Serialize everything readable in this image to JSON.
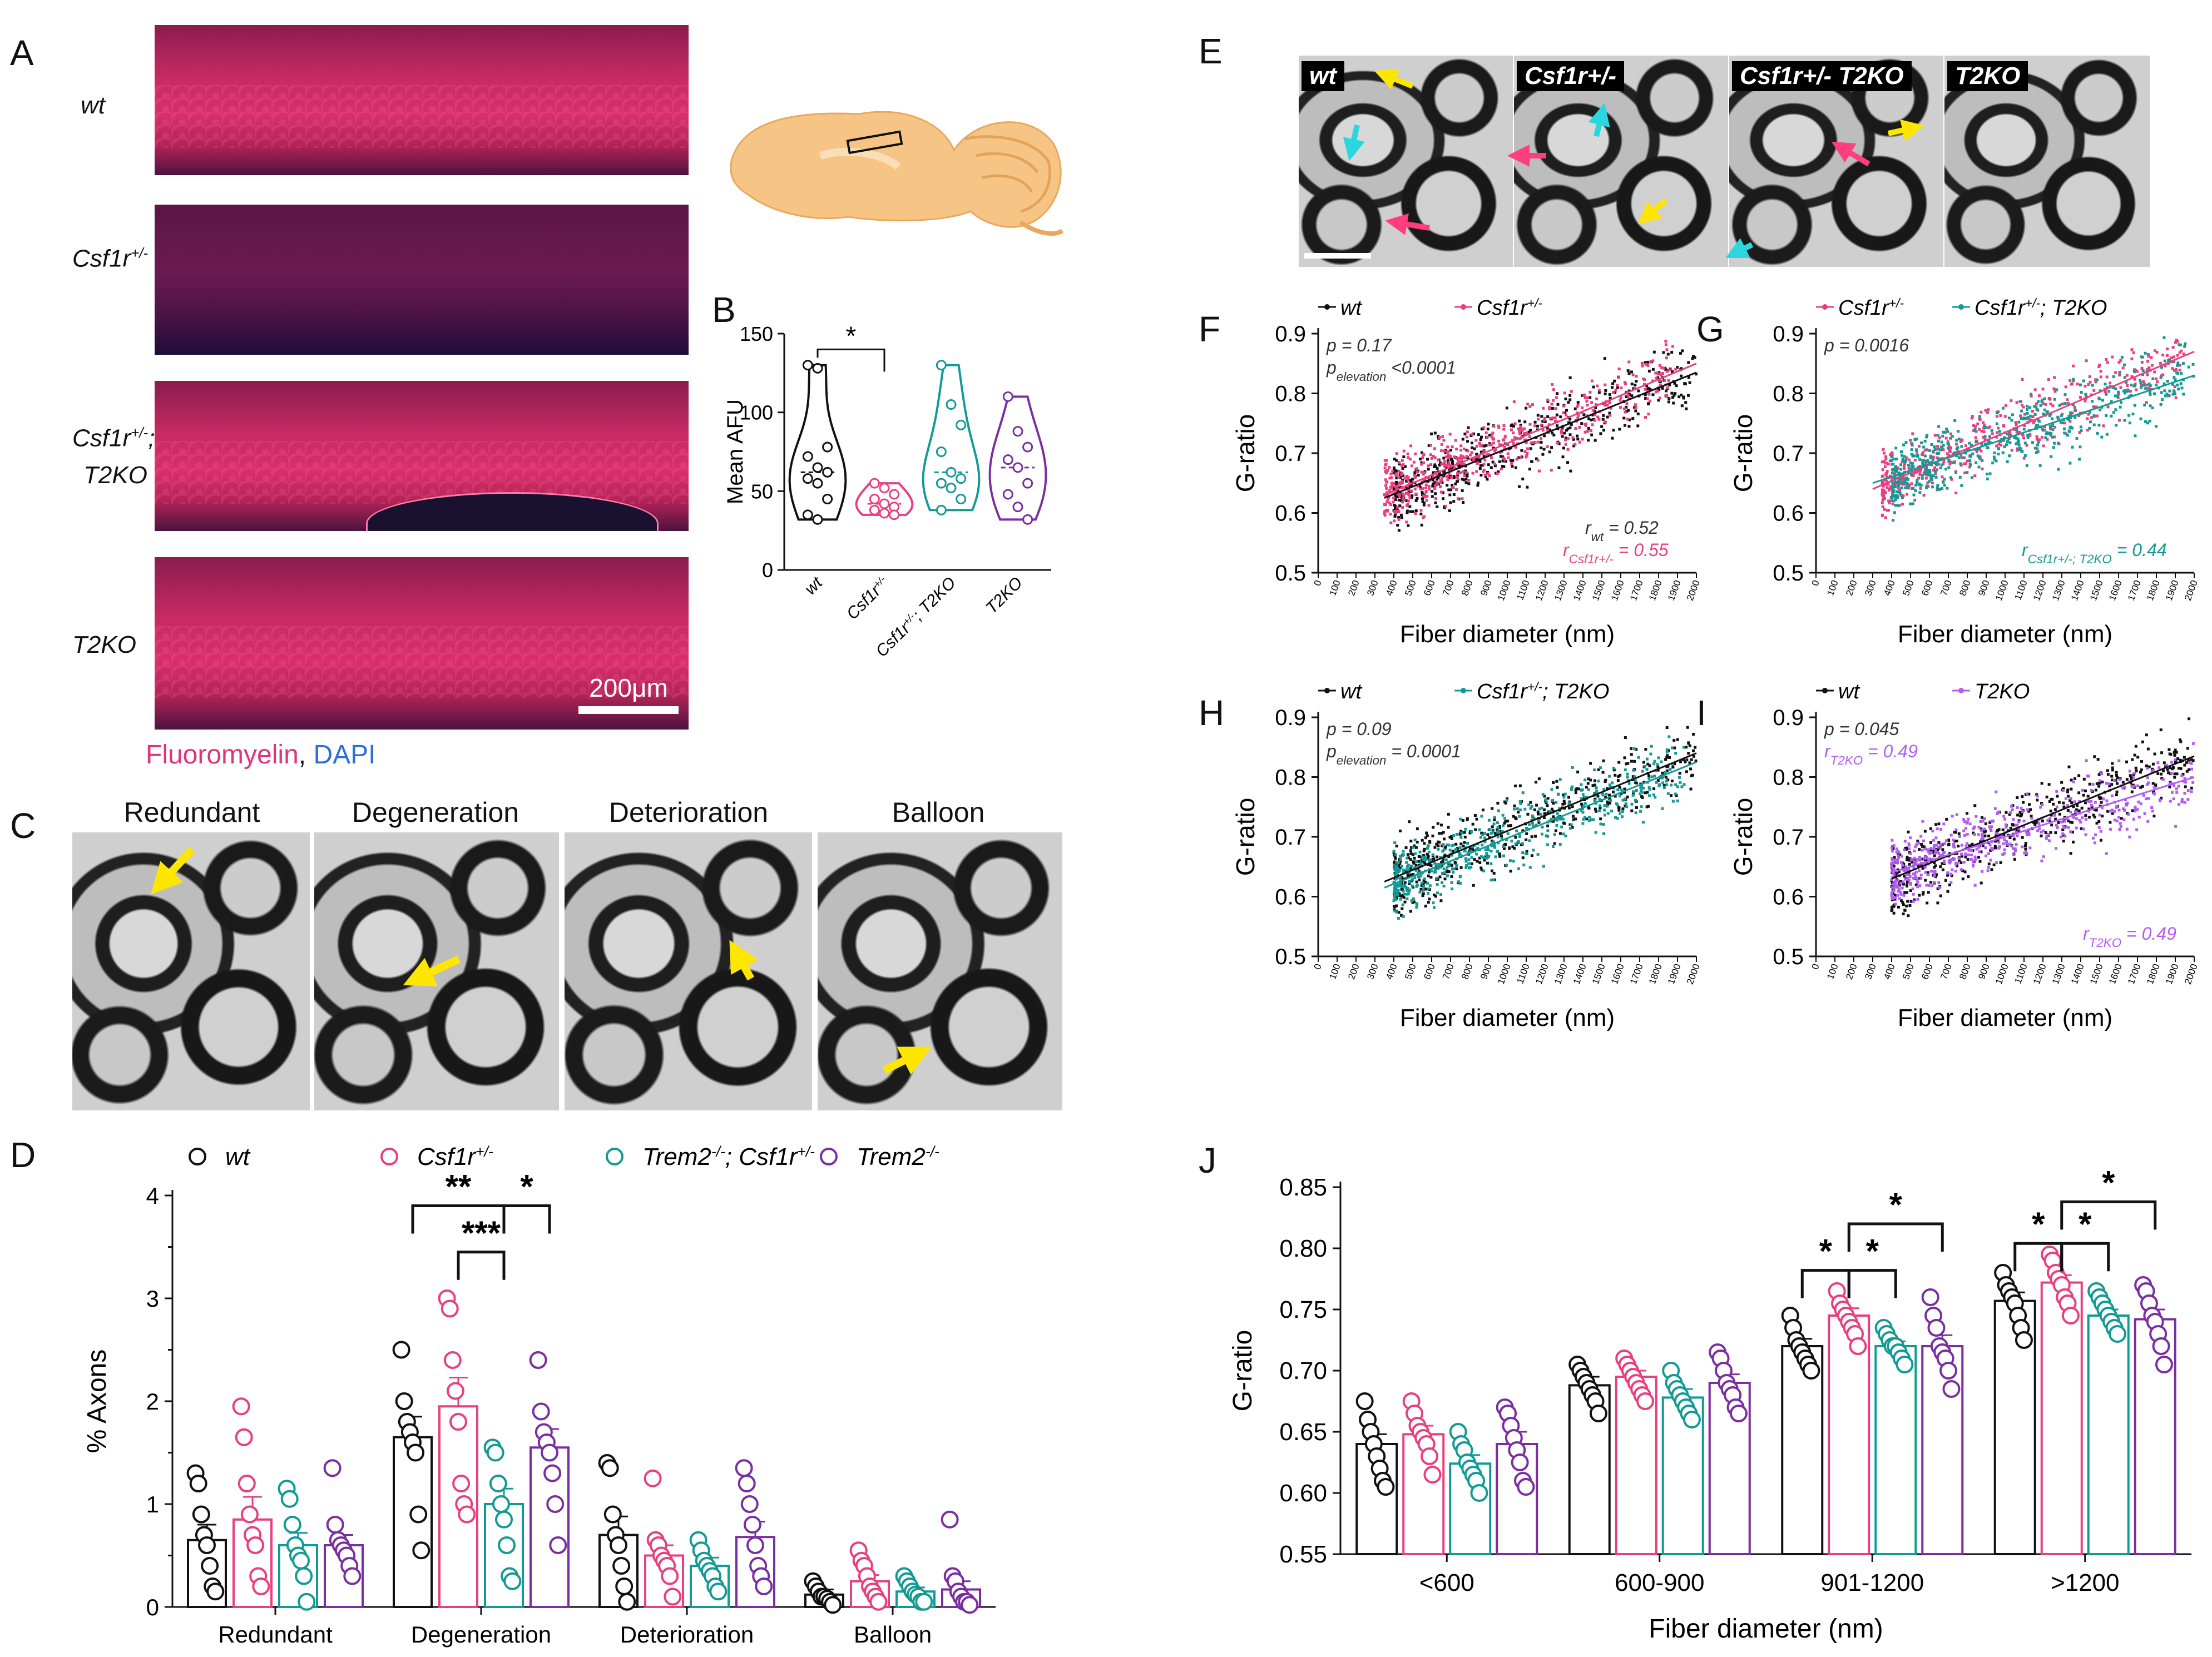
{
  "panel_letters": {
    "a": "A",
    "b": "B",
    "c": "C",
    "d": "D",
    "e": "E",
    "f": "F",
    "g": "G",
    "h": "H",
    "i": "I",
    "j": "J"
  },
  "panel_a": {
    "rows": [
      "wt",
      "Csf1r+/-",
      "Csf1r+/-; T2KO",
      "T2KO"
    ],
    "scale_bar": "200μm",
    "stain_1": "Fluoromyelin",
    "stain_sep": ", ",
    "stain_2": "DAPI",
    "colors": {
      "fluoromyelin": "#e0337a",
      "dapi": "#2f6ed8"
    }
  },
  "panel_c": {
    "titles": [
      "Redundant",
      "Degeneration",
      "Deterioration",
      "Balloon"
    ]
  },
  "panel_e": {
    "labels": [
      "wt",
      "Csf1r+/-",
      "Csf1r+/- T2KO",
      "T2KO"
    ]
  },
  "colors": {
    "wt": "#111111",
    "csf": "#e8407f",
    "trem_csf": "#129a95",
    "trem": "#7a2fa0",
    "scatter_trem": "#b45cf0"
  },
  "chart_data": [
    {
      "id": "B",
      "type": "violin",
      "ylabel": "Mean AFU",
      "ylim": [
        0,
        150
      ],
      "yticks": [
        0,
        50,
        100,
        150
      ],
      "categories": [
        "wt",
        "Csf1r+/-",
        "Csf1r+/-; T2KO",
        "T2KO"
      ],
      "series": [
        {
          "name": "wt",
          "values": [
            130,
            128,
            78,
            72,
            65,
            62,
            58,
            55,
            45,
            35,
            32
          ]
        },
        {
          "name": "Csf1r+/-",
          "values": [
            55,
            52,
            48,
            45,
            42,
            40,
            38,
            36,
            35
          ]
        },
        {
          "name": "Csf1r+/-; T2KO",
          "values": [
            130,
            105,
            92,
            75,
            62,
            58,
            55,
            52,
            45,
            38
          ]
        },
        {
          "name": "T2KO",
          "values": [
            110,
            88,
            78,
            70,
            65,
            55,
            48,
            40,
            32
          ]
        }
      ],
      "significance": [
        {
          "from": 0,
          "to": 1,
          "label": "*"
        }
      ]
    },
    {
      "id": "D",
      "type": "bar",
      "ylabel": "% Axons",
      "ylim": [
        0,
        4
      ],
      "yticks": [
        0,
        1,
        2,
        3,
        4
      ],
      "categories": [
        "Redundant",
        "Degeneration",
        "Deterioration",
        "Balloon"
      ],
      "legend": [
        "wt",
        "Csf1r+/-",
        "Trem2-/-; Csf1r+/-",
        "Trem2-/-"
      ],
      "series": [
        {
          "name": "wt",
          "values": [
            0.65,
            1.65,
            0.7,
            0.12
          ],
          "errors": [
            0.15,
            0.2,
            0.18,
            0.05
          ],
          "points": [
            [
              1.3,
              1.2,
              0.9,
              0.7,
              0.6,
              0.4,
              0.2,
              0.15
            ],
            [
              2.5,
              2.0,
              1.8,
              1.7,
              1.6,
              1.5,
              0.9,
              0.55
            ],
            [
              1.4,
              1.35,
              0.9,
              0.7,
              0.6,
              0.4,
              0.2,
              0.05
            ],
            [
              0.25,
              0.2,
              0.15,
              0.1,
              0.1,
              0.08,
              0.05,
              0.02
            ]
          ]
        },
        {
          "name": "Csf1r+/-",
          "values": [
            0.85,
            1.95,
            0.5,
            0.25
          ],
          "errors": [
            0.22,
            0.28,
            0.1,
            0.06
          ],
          "points": [
            [
              1.95,
              1.65,
              1.2,
              0.9,
              0.7,
              0.6,
              0.3,
              0.2
            ],
            [
              3.0,
              2.9,
              2.4,
              2.1,
              1.8,
              1.2,
              1.0,
              0.9
            ],
            [
              1.25,
              0.65,
              0.6,
              0.5,
              0.45,
              0.4,
              0.3,
              0.1
            ],
            [
              0.55,
              0.45,
              0.4,
              0.3,
              0.2,
              0.15,
              0.1,
              0.05
            ]
          ]
        },
        {
          "name": "Trem2-/-; Csf1r+/-",
          "values": [
            0.6,
            1.0,
            0.4,
            0.15
          ],
          "errors": [
            0.12,
            0.15,
            0.08,
            0.04
          ],
          "points": [
            [
              1.15,
              1.05,
              0.8,
              0.6,
              0.5,
              0.45,
              0.3,
              0.05
            ],
            [
              1.55,
              1.5,
              1.2,
              1.0,
              0.85,
              0.6,
              0.3,
              0.25
            ],
            [
              0.65,
              0.55,
              0.45,
              0.4,
              0.35,
              0.3,
              0.2,
              0.15
            ],
            [
              0.3,
              0.25,
              0.2,
              0.15,
              0.12,
              0.1,
              0.05,
              0.05
            ]
          ]
        },
        {
          "name": "Trem2-/-",
          "values": [
            0.6,
            1.55,
            0.68,
            0.17
          ],
          "errors": [
            0.1,
            0.18,
            0.15,
            0.08
          ],
          "points": [
            [
              1.35,
              0.8,
              0.65,
              0.6,
              0.55,
              0.5,
              0.4,
              0.3
            ],
            [
              2.4,
              1.9,
              1.7,
              1.6,
              1.5,
              1.3,
              1.0,
              0.6
            ],
            [
              1.35,
              1.2,
              1.0,
              0.8,
              0.6,
              0.4,
              0.3,
              0.2
            ],
            [
              0.85,
              0.3,
              0.25,
              0.15,
              0.1,
              0.05,
              0.05,
              0.02
            ]
          ]
        }
      ],
      "significance": [
        {
          "group": 1,
          "from": 0,
          "to": 2,
          "label": "**",
          "y": 3.9
        },
        {
          "group": 1,
          "from": 2,
          "to": 3,
          "label": "*",
          "y": 3.9
        },
        {
          "group": 1,
          "from": 1,
          "to": 2,
          "label": "***",
          "y": 3.45
        }
      ]
    },
    {
      "id": "F",
      "type": "scatter",
      "xlabel": "Fiber diameter (nm)",
      "ylabel": "G-ratio",
      "xlim": [
        0,
        2000
      ],
      "ylim": [
        0.5,
        0.9
      ],
      "xticks": [
        0,
        100,
        200,
        300,
        400,
        500,
        600,
        700,
        800,
        900,
        1000,
        1100,
        1200,
        1300,
        1400,
        1500,
        1600,
        1700,
        1800,
        1900,
        2000
      ],
      "yticks": [
        0.5,
        0.6,
        0.7,
        0.8,
        0.9
      ],
      "legend": [
        "wt",
        "Csf1r+/-"
      ],
      "series": [
        {
          "name": "wt",
          "fit": [
            [
              350,
              0.625
            ],
            [
              2000,
              0.835
            ]
          ],
          "cloud": {
            "xmin": 400,
            "xmax": 2000,
            "ycenter": 0.7,
            "spread": 0.06,
            "n": 520
          }
        },
        {
          "name": "Csf1r+/-",
          "fit": [
            [
              350,
              0.63
            ],
            [
              2000,
              0.85
            ]
          ],
          "cloud": {
            "xmin": 350,
            "xmax": 1900,
            "ycenter": 0.72,
            "spread": 0.05,
            "n": 520
          }
        }
      ],
      "annotations": [
        "p = 0.17",
        "p",
        "elevation",
        " <0.0001",
        "r",
        "wt",
        " = 0.52",
        "r",
        "Csf1r+/-",
        " = 0.55"
      ]
    },
    {
      "id": "G",
      "type": "scatter",
      "xlabel": "Fiber diameter (nm)",
      "ylabel": "G-ratio",
      "xlim": [
        0,
        2000
      ],
      "ylim": [
        0.5,
        0.9
      ],
      "xticks": [
        0,
        100,
        200,
        300,
        400,
        500,
        600,
        700,
        800,
        900,
        1000,
        1100,
        1200,
        1300,
        1400,
        1500,
        1600,
        1700,
        1800,
        1900,
        2000
      ],
      "yticks": [
        0.5,
        0.6,
        0.7,
        0.8,
        0.9
      ],
      "legend": [
        "Csf1r+/-",
        "Csf1r+/-; T2KO"
      ],
      "series": [
        {
          "name": "Csf1r+/-",
          "fit": [
            [
              300,
              0.64
            ],
            [
              2000,
              0.87
            ]
          ],
          "cloud": {
            "xmin": 350,
            "xmax": 1950,
            "ycenter": 0.72,
            "spread": 0.05,
            "n": 520
          }
        },
        {
          "name": "Csf1r+/-; T2KO",
          "fit": [
            [
              300,
              0.65
            ],
            [
              2000,
              0.83
            ]
          ],
          "cloud": {
            "xmin": 400,
            "xmax": 2000,
            "ycenter": 0.7,
            "spread": 0.055,
            "n": 520
          }
        }
      ],
      "annotations": [
        "p = 0.0016",
        "r",
        "Csf1r+/-; T2KO",
        " = 0.44"
      ]
    },
    {
      "id": "H",
      "type": "scatter",
      "xlabel": "Fiber diameter (nm)",
      "ylabel": "G-ratio",
      "xlim": [
        0,
        2000
      ],
      "ylim": [
        0.5,
        0.9
      ],
      "xticks": [
        0,
        100,
        200,
        300,
        400,
        500,
        600,
        700,
        800,
        900,
        1000,
        1100,
        1200,
        1300,
        1400,
        1500,
        1600,
        1700,
        1800,
        1900,
        2000
      ],
      "yticks": [
        0.5,
        0.6,
        0.7,
        0.8,
        0.9
      ],
      "legend": [
        "wt",
        "Csf1r+/-; T2KO"
      ],
      "series": [
        {
          "name": "wt",
          "fit": [
            [
              350,
              0.625
            ],
            [
              2000,
              0.84
            ]
          ],
          "cloud": {
            "xmin": 400,
            "xmax": 2000,
            "ycenter": 0.7,
            "spread": 0.06,
            "n": 520
          }
        },
        {
          "name": "Csf1r+/-; T2KO",
          "fit": [
            [
              350,
              0.615
            ],
            [
              2000,
              0.825
            ]
          ],
          "cloud": {
            "xmin": 400,
            "xmax": 1950,
            "ycenter": 0.69,
            "spread": 0.055,
            "n": 520
          }
        }
      ],
      "annotations": [
        "p = 0.09",
        "p",
        "elevation",
        " = 0.0001"
      ]
    },
    {
      "id": "I",
      "type": "scatter",
      "xlabel": "Fiber diameter (nm)",
      "ylabel": "G-ratio",
      "xlim": [
        0,
        2000
      ],
      "ylim": [
        0.5,
        0.9
      ],
      "xticks": [
        0,
        100,
        200,
        300,
        400,
        500,
        600,
        700,
        800,
        900,
        1000,
        1100,
        1200,
        1300,
        1400,
        1500,
        1600,
        1700,
        1800,
        1900,
        2000
      ],
      "yticks": [
        0.5,
        0.6,
        0.7,
        0.8,
        0.9
      ],
      "legend": [
        "wt",
        "T2KO"
      ],
      "series": [
        {
          "name": "wt",
          "fit": [
            [
              400,
              0.63
            ],
            [
              2000,
              0.835
            ]
          ],
          "cloud": {
            "xmin": 400,
            "xmax": 2000,
            "ycenter": 0.7,
            "spread": 0.06,
            "n": 520
          }
        },
        {
          "name": "T2KO",
          "fit": [
            [
              400,
              0.64
            ],
            [
              2000,
              0.8
            ]
          ],
          "cloud": {
            "xmin": 400,
            "xmax": 2000,
            "ycenter": 0.7,
            "spread": 0.055,
            "n": 520
          }
        }
      ],
      "annotations": [
        "p = 0.045",
        "r",
        "T2KO",
        " = 0.49",
        "r",
        "T2KO",
        " = 0.49"
      ]
    },
    {
      "id": "J",
      "type": "bar",
      "xlabel": "Fiber diameter (nm)",
      "ylabel": "G-ratio",
      "ylim": [
        0.55,
        0.85
      ],
      "yticks": [
        0.55,
        0.6,
        0.65,
        0.7,
        0.75,
        0.8,
        0.85
      ],
      "categories": [
        "<600",
        "600-900",
        "901-1200",
        ">1200"
      ],
      "series": [
        {
          "name": "wt",
          "values": [
            0.64,
            0.688,
            0.72,
            0.757
          ],
          "errors": [
            0.008,
            0.007,
            0.006,
            0.007
          ],
          "points": [
            [
              0.675,
              0.66,
              0.65,
              0.64,
              0.63,
              0.62,
              0.61,
              0.605
            ],
            [
              0.705,
              0.7,
              0.695,
              0.69,
              0.685,
              0.68,
              0.675,
              0.665
            ],
            [
              0.745,
              0.735,
              0.725,
              0.72,
              0.715,
              0.71,
              0.705,
              0.7
            ],
            [
              0.78,
              0.77,
              0.765,
              0.76,
              0.755,
              0.745,
              0.735,
              0.725
            ]
          ]
        },
        {
          "name": "Csf1r+/-",
          "values": [
            0.648,
            0.695,
            0.745,
            0.772
          ],
          "errors": [
            0.007,
            0.005,
            0.006,
            0.006
          ],
          "points": [
            [
              0.675,
              0.665,
              0.655,
              0.65,
              0.645,
              0.64,
              0.63,
              0.615
            ],
            [
              0.71,
              0.705,
              0.7,
              0.695,
              0.69,
              0.685,
              0.68,
              0.675
            ],
            [
              0.765,
              0.755,
              0.75,
              0.745,
              0.74,
              0.735,
              0.73,
              0.72
            ],
            [
              0.795,
              0.79,
              0.78,
              0.775,
              0.77,
              0.76,
              0.755,
              0.745
            ]
          ]
        },
        {
          "name": "Trem2-/-; Csf1r+/-",
          "values": [
            0.624,
            0.678,
            0.72,
            0.745
          ],
          "errors": [
            0.007,
            0.007,
            0.004,
            0.005
          ],
          "points": [
            [
              0.65,
              0.64,
              0.635,
              0.625,
              0.62,
              0.615,
              0.61,
              0.6
            ],
            [
              0.7,
              0.69,
              0.685,
              0.68,
              0.675,
              0.67,
              0.665,
              0.66
            ],
            [
              0.735,
              0.73,
              0.725,
              0.72,
              0.72,
              0.715,
              0.71,
              0.705
            ],
            [
              0.765,
              0.76,
              0.755,
              0.75,
              0.745,
              0.74,
              0.735,
              0.73
            ]
          ]
        },
        {
          "name": "Trem2-/-",
          "values": [
            0.64,
            0.69,
            0.72,
            0.742
          ],
          "errors": [
            0.01,
            0.007,
            0.009,
            0.008
          ],
          "points": [
            [
              0.67,
              0.665,
              0.655,
              0.645,
              0.635,
              0.625,
              0.61,
              0.605
            ],
            [
              0.715,
              0.71,
              0.7,
              0.69,
              0.685,
              0.68,
              0.67,
              0.665
            ],
            [
              0.76,
              0.745,
              0.735,
              0.72,
              0.715,
              0.71,
              0.7,
              0.685
            ],
            [
              0.77,
              0.765,
              0.755,
              0.745,
              0.74,
              0.73,
              0.72,
              0.705
            ]
          ]
        }
      ],
      "significance": [
        {
          "group": 2,
          "from": 0,
          "to": 1,
          "label": "*",
          "y": 0.782
        },
        {
          "group": 2,
          "from": 1,
          "to": 2,
          "label": "*",
          "y": 0.782
        },
        {
          "group": 2,
          "from": 1,
          "to": 3,
          "label": "*",
          "y": 0.82
        },
        {
          "group": 3,
          "from": 0,
          "to": 1,
          "label": "*",
          "y": 0.804
        },
        {
          "group": 3,
          "from": 1,
          "to": 2,
          "label": "*",
          "y": 0.804
        },
        {
          "group": 3,
          "from": 1,
          "to": 3,
          "label": "*",
          "y": 0.838
        }
      ]
    }
  ]
}
